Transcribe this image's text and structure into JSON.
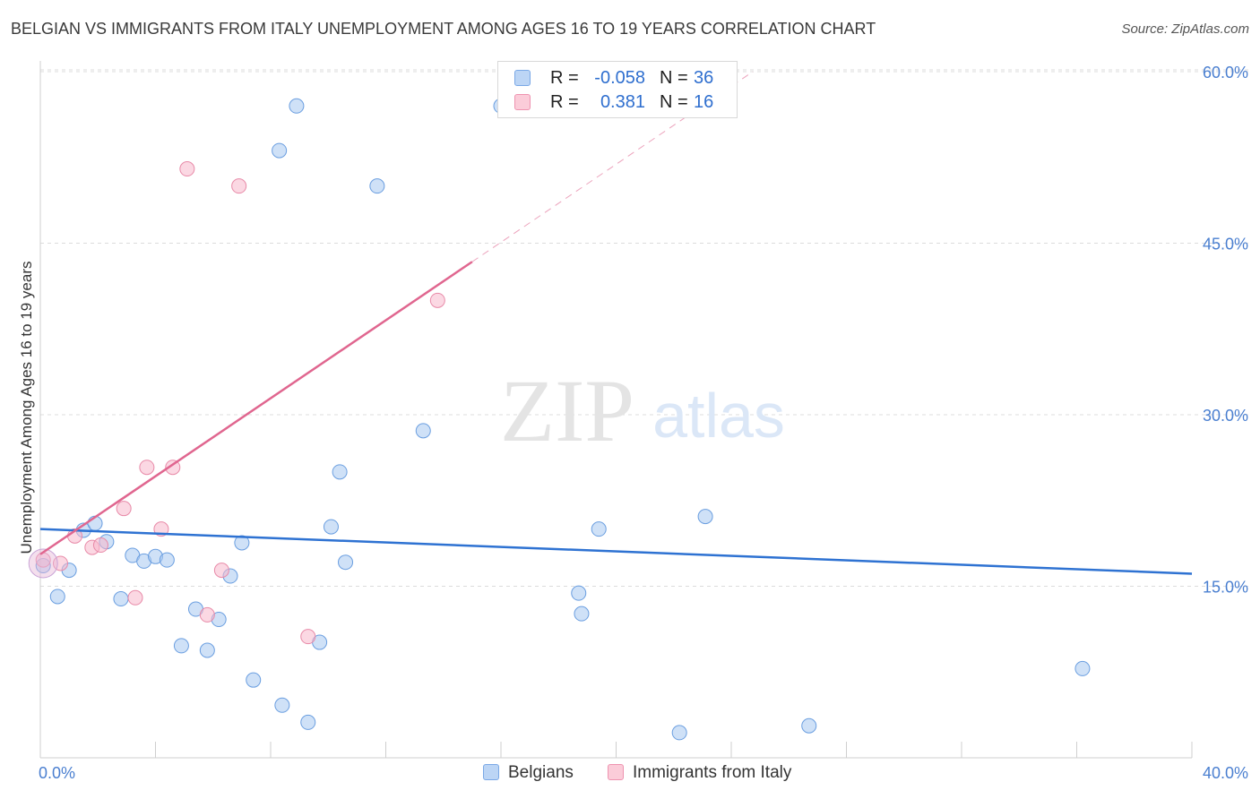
{
  "header": {
    "title": "BELGIAN VS IMMIGRANTS FROM ITALY UNEMPLOYMENT AMONG AGES 16 TO 19 YEARS CORRELATION CHART",
    "source": "Source: ZipAtlas.com"
  },
  "watermark": {
    "zip": "ZIP",
    "atlas": "atlas"
  },
  "stats_legend": {
    "rows": [
      {
        "r_label": "R =",
        "r_value": "-0.058",
        "n_label": "N =",
        "n_value": "36",
        "color": "#a8c8f0"
      },
      {
        "r_label": "R =",
        "r_value": "0.381",
        "n_label": "N =",
        "n_value": "16",
        "color": "#f7b8cc"
      }
    ]
  },
  "chart_data": {
    "type": "scatter",
    "title": "BELGIAN VS IMMIGRANTS FROM ITALY UNEMPLOYMENT AMONG AGES 16 TO 19 YEARS CORRELATION CHART",
    "xlabel": "",
    "ylabel": "Unemployment Among Ages 16 to 19 years",
    "xlim": [
      0,
      40
    ],
    "ylim": [
      0,
      60
    ],
    "x_tick_labels": [
      "0.0%",
      "40.0%"
    ],
    "y_tick_labels": [
      "15.0%",
      "30.0%",
      "45.0%",
      "60.0%"
    ],
    "y_ticks": [
      15,
      30,
      45,
      60
    ],
    "grid": true,
    "series": [
      {
        "name": "Belgians",
        "color": "#a8c8f0",
        "stroke": "#6a9ee0",
        "trend_color": "#2e72d2",
        "trend": {
          "x0": 0,
          "y0": 20.0,
          "x1": 40,
          "y1": 16.1,
          "solid_to": 40
        },
        "points": [
          [
            0.1,
            16.8
          ],
          [
            0.6,
            14.1
          ],
          [
            1.0,
            16.4
          ],
          [
            1.5,
            19.9
          ],
          [
            1.9,
            20.5
          ],
          [
            2.3,
            18.9
          ],
          [
            2.8,
            13.9
          ],
          [
            3.2,
            17.7
          ],
          [
            3.6,
            17.2
          ],
          [
            4.0,
            17.6
          ],
          [
            4.4,
            17.3
          ],
          [
            4.9,
            9.8
          ],
          [
            5.4,
            13.0
          ],
          [
            5.8,
            9.4
          ],
          [
            6.2,
            12.1
          ],
          [
            6.6,
            15.9
          ],
          [
            7.0,
            18.8
          ],
          [
            7.4,
            6.8
          ],
          [
            8.3,
            53.1
          ],
          [
            8.4,
            4.6
          ],
          [
            8.9,
            57.0
          ],
          [
            9.3,
            3.1
          ],
          [
            9.7,
            10.1
          ],
          [
            10.1,
            20.2
          ],
          [
            10.6,
            17.1
          ],
          [
            10.4,
            25.0
          ],
          [
            11.7,
            50.0
          ],
          [
            13.3,
            28.6
          ],
          [
            16.0,
            57.0
          ],
          [
            18.7,
            14.4
          ],
          [
            18.8,
            12.6
          ],
          [
            19.4,
            20.0
          ],
          [
            22.2,
            2.2
          ],
          [
            23.1,
            21.1
          ],
          [
            26.7,
            2.8
          ],
          [
            36.2,
            7.8
          ]
        ]
      },
      {
        "name": "Immigrants from Italy",
        "color": "#f7b8cc",
        "stroke": "#e88aa8",
        "trend_color": "#e0668f",
        "trend": {
          "x0": 0,
          "y0": 17.8,
          "x1": 40,
          "y1": 86.0,
          "solid_to": 15.0
        },
        "points": [
          [
            0.1,
            17.3
          ],
          [
            0.7,
            17.0
          ],
          [
            1.2,
            19.4
          ],
          [
            1.8,
            18.4
          ],
          [
            2.1,
            18.6
          ],
          [
            2.9,
            21.8
          ],
          [
            3.3,
            14.0
          ],
          [
            3.7,
            25.4
          ],
          [
            4.2,
            20.0
          ],
          [
            4.6,
            25.4
          ],
          [
            5.1,
            51.5
          ],
          [
            5.8,
            12.5
          ],
          [
            6.3,
            16.4
          ],
          [
            6.9,
            50.0
          ],
          [
            9.3,
            10.6
          ],
          [
            13.8,
            40.0
          ]
        ]
      }
    ],
    "legend": [
      "Belgians",
      "Immigrants from Italy"
    ]
  }
}
